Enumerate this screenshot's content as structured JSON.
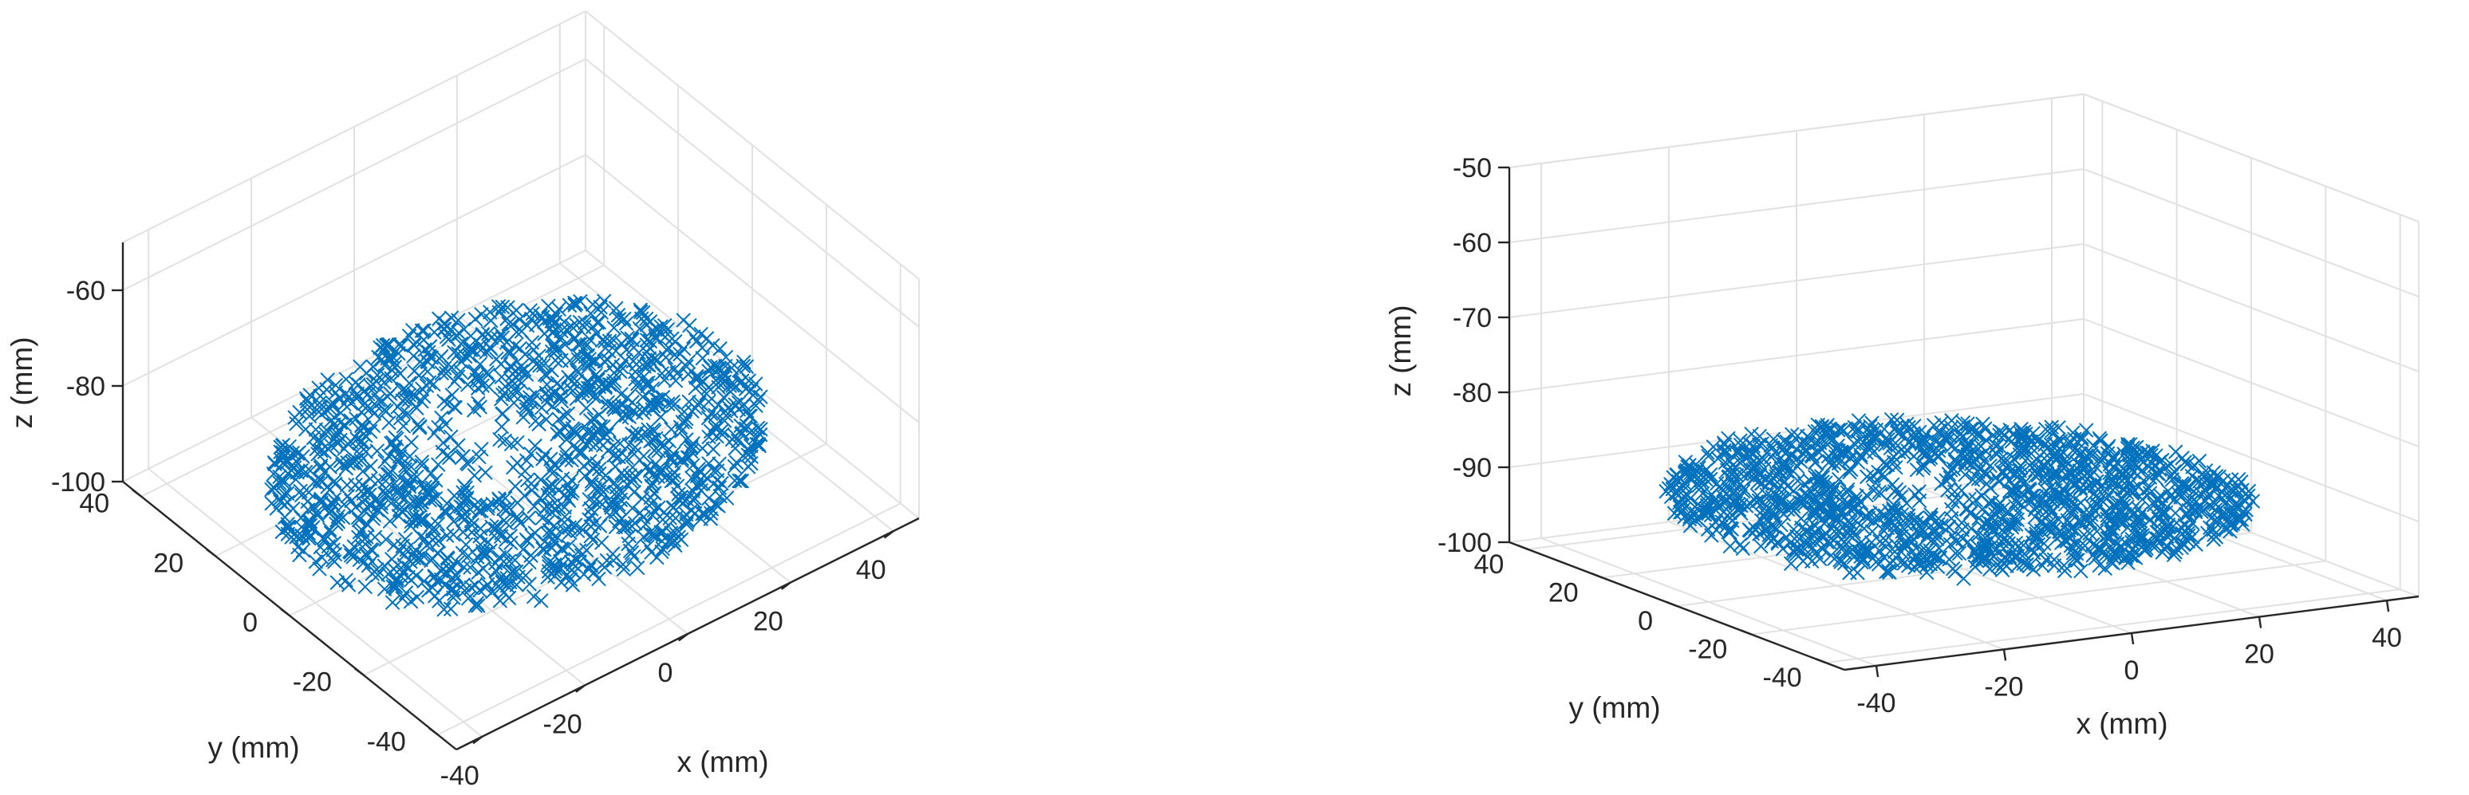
{
  "chart_data": [
    {
      "type": "scatter",
      "view": "oblique",
      "marker": "x",
      "color": "#0072bd",
      "xlabel": "x (mm)",
      "ylabel": "y (mm)",
      "zlabel": "z (mm)",
      "xlim": [
        -45,
        45
      ],
      "ylim": [
        -45,
        45
      ],
      "zlim": [
        -100,
        -50
      ],
      "xticks": [
        "-40",
        "-20",
        "0",
        "20",
        "40"
      ],
      "yticks": [
        "-40",
        "-20",
        "0",
        "20",
        "40"
      ],
      "zticks": [
        "-100",
        "-80",
        "-60"
      ],
      "grid": true,
      "point_count": 1500,
      "footprint": {
        "x_range": [
          -42,
          42
        ],
        "y_range": [
          -32,
          34
        ]
      },
      "z_profile": {
        "z_min": -96,
        "z_max": -86
      }
    },
    {
      "type": "scatter",
      "view": "side",
      "marker": "x",
      "color": "#0072bd",
      "xlabel": "x (mm)",
      "ylabel": "y (mm)",
      "zlabel": "z (mm)",
      "xlim": [
        -45,
        45
      ],
      "ylim": [
        -45,
        45
      ],
      "zlim": [
        -100,
        -50
      ],
      "xticks": [
        "-40",
        "-20",
        "0",
        "20",
        "40"
      ],
      "yticks": [
        "-40",
        "-20",
        "0",
        "20",
        "40"
      ],
      "zticks": [
        "-100",
        "-90",
        "-80",
        "-70",
        "-60",
        "-50"
      ],
      "grid": true,
      "point_count": 1500,
      "footprint": {
        "x_range": [
          -42,
          42
        ],
        "y_range": [
          -32,
          34
        ]
      },
      "z_profile": {
        "z_min": -96,
        "z_max": -86
      }
    }
  ]
}
